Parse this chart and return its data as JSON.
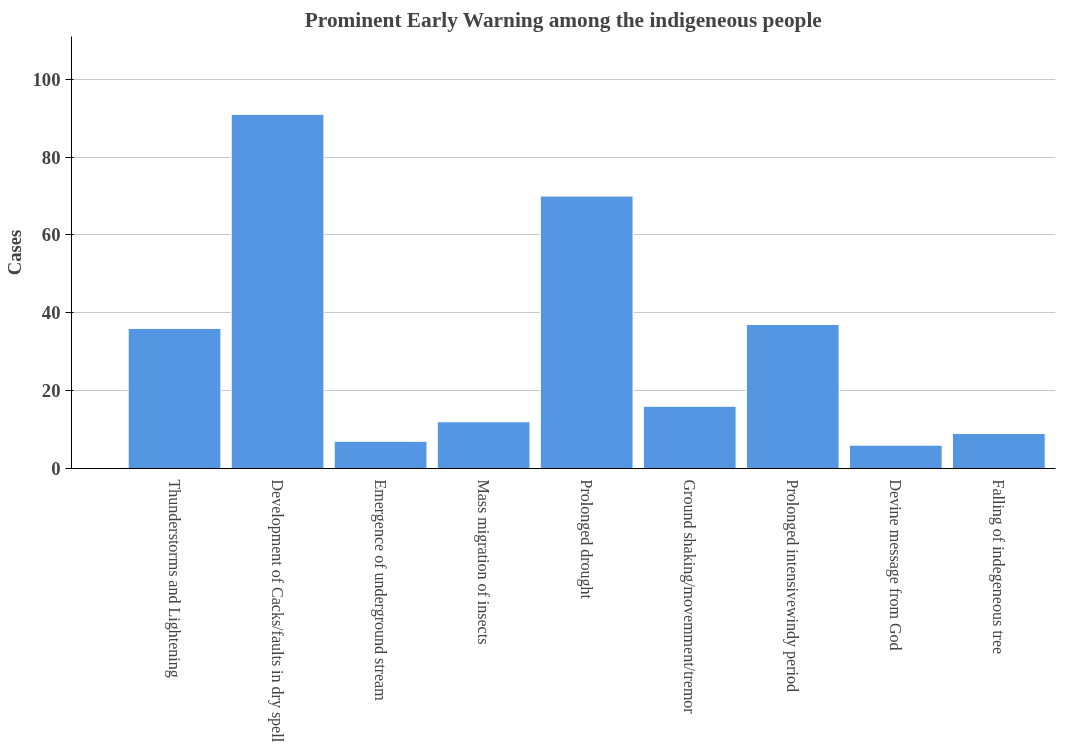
{
  "chart_data": {
    "type": "bar",
    "title": "Prominent Early Warning among the indigeneous people",
    "ylabel": "Cases",
    "categories": [
      "Thunderstorms and Lightening",
      "Development of Cacks/faults in dry spell",
      "Emergence of underground stream",
      "Mass migration of insects",
      "Prolonged drought",
      "Ground shaking/movemment/tremor",
      "Prolonged intensivewindy period",
      "Devine message from God",
      "Falling of indegeneous tree"
    ],
    "values": [
      36,
      91,
      7,
      12,
      70,
      16,
      37,
      6,
      9
    ],
    "color": "#5596e3",
    "ylim": [
      0,
      111
    ],
    "yticks": [
      0,
      20,
      40,
      60,
      80,
      100
    ],
    "grid": "y"
  }
}
